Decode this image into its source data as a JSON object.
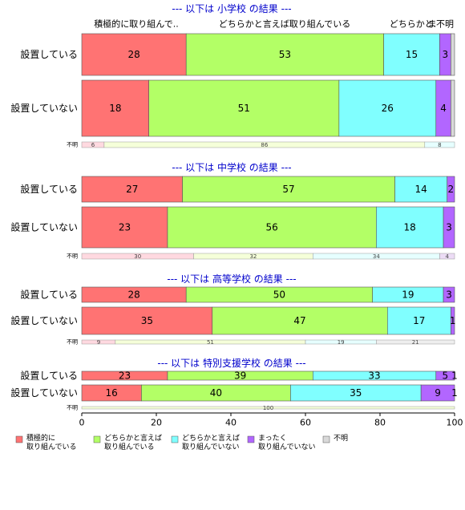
{
  "chart_data": {
    "type": "bar",
    "orientation": "horizontal",
    "stacked": true,
    "xlim": [
      0,
      100
    ],
    "x_ticks": [
      "0",
      "20",
      "40",
      "60",
      "80",
      "100"
    ],
    "grid": false,
    "legend_placement": "bottom",
    "legend": [
      {
        "label": "積極的に\n取り組んでいる",
        "color": "#ff7373"
      },
      {
        "label": "どちらかと言えば\n取り組んでいる",
        "color": "#b3ff66"
      },
      {
        "label": "どちらかと言えば\n取り組んでいない",
        "color": "#80ffff"
      },
      {
        "label": "まったく\n取り組んでいない",
        "color": "#b266ff"
      },
      {
        "label": "不明",
        "color": "#d9d9d9"
      }
    ],
    "top_category_labels": [
      "積極的に取り組んで..",
      "どちらかと言えば取り組んでいる",
      "どちらかと.",
      "ま",
      "不明"
    ],
    "unknown_colors": [
      "#ffd9e0",
      "#f5ffd9",
      "#e6ffff",
      "#ecdcf5",
      "#eeeeee"
    ],
    "panels": [
      {
        "title": "--- 以下は 小学校 の結果 ---",
        "rows": [
          {
            "label": "設置している",
            "values": [
              28,
              53,
              15,
              3,
              1
            ],
            "value_labels": [
              "28",
              "53",
              "15",
              "3",
              ""
            ]
          },
          {
            "label": "設置していない",
            "values": [
              18,
              51,
              26,
              4,
              1
            ],
            "value_labels": [
              "18",
              "51",
              "26",
              "4",
              ""
            ]
          }
        ],
        "unknown": {
          "label": "不明",
          "values": [
            6,
            86,
            8,
            0,
            0
          ],
          "value_labels": [
            "6",
            "86",
            "8",
            "",
            ""
          ]
        }
      },
      {
        "title": "--- 以下は 中学校 の結果 ---",
        "rows": [
          {
            "label": "設置している",
            "values": [
              27,
              57,
              14,
              2,
              0
            ],
            "value_labels": [
              "27",
              "57",
              "14",
              "2",
              ""
            ]
          },
          {
            "label": "設置していない",
            "values": [
              23,
              56,
              18,
              3,
              0
            ],
            "value_labels": [
              "23",
              "56",
              "18",
              "3",
              ""
            ]
          }
        ],
        "unknown": {
          "label": "不明",
          "values": [
            30,
            32,
            34,
            4,
            0
          ],
          "value_labels": [
            "30",
            "32",
            "34",
            "4",
            ""
          ]
        }
      },
      {
        "title": "--- 以下は 高等学校 の結果 ---",
        "rows": [
          {
            "label": "設置している",
            "values": [
              28,
              50,
              19,
              3,
              0
            ],
            "value_labels": [
              "28",
              "50",
              "19",
              "3",
              ""
            ]
          },
          {
            "label": "設置していない",
            "values": [
              35,
              47,
              17,
              1,
              0
            ],
            "value_labels": [
              "35",
              "47",
              "17",
              "1",
              ""
            ]
          }
        ],
        "unknown": {
          "label": "不明",
          "values": [
            9,
            51,
            19,
            0,
            21
          ],
          "value_labels": [
            "9",
            "51",
            "19",
            "",
            "21"
          ]
        }
      },
      {
        "title": "--- 以下は 特別支援学校 の結果 ---",
        "rows": [
          {
            "label": "設置している",
            "values": [
              23,
              39,
              33,
              5,
              1
            ],
            "value_labels": [
              "23",
              "39",
              "33",
              "5",
              "1"
            ]
          },
          {
            "label": "設置していない",
            "values": [
              16,
              40,
              35,
              9,
              1
            ],
            "value_labels": [
              "16",
              "40",
              "35",
              "9",
              "1"
            ]
          }
        ],
        "unknown": {
          "label": "不明",
          "values": [
            0,
            100,
            0,
            0,
            0
          ],
          "value_labels": [
            "",
            "100",
            "",
            "",
            ""
          ]
        }
      }
    ]
  }
}
